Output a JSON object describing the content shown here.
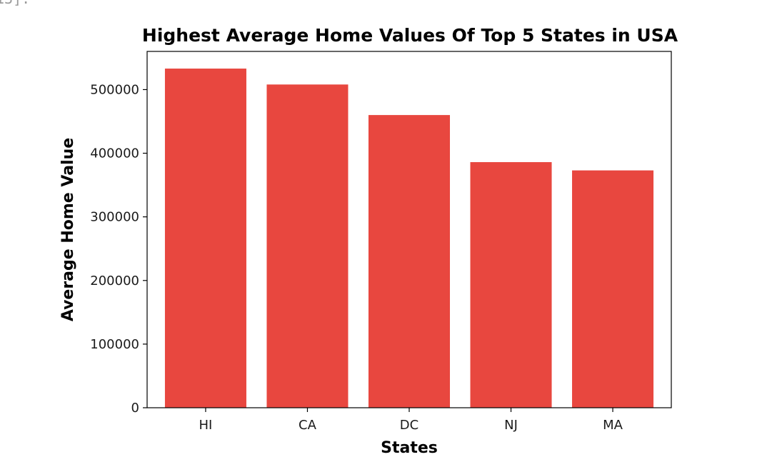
{
  "cell": {
    "prompt_text": "13]:"
  },
  "chart_data": {
    "type": "bar",
    "title": "Highest Average Home Values Of Top 5 States in USA",
    "xlabel": "States",
    "ylabel": "Average Home Value",
    "categories": [
      "HI",
      "CA",
      "DC",
      "NJ",
      "MA"
    ],
    "values": [
      533000,
      508000,
      460000,
      386000,
      373000
    ],
    "ylim": [
      0,
      560000
    ],
    "yticks": [
      0,
      100000,
      200000,
      300000,
      400000,
      500000
    ],
    "bar_color": "#e8473f",
    "grid": false
  }
}
